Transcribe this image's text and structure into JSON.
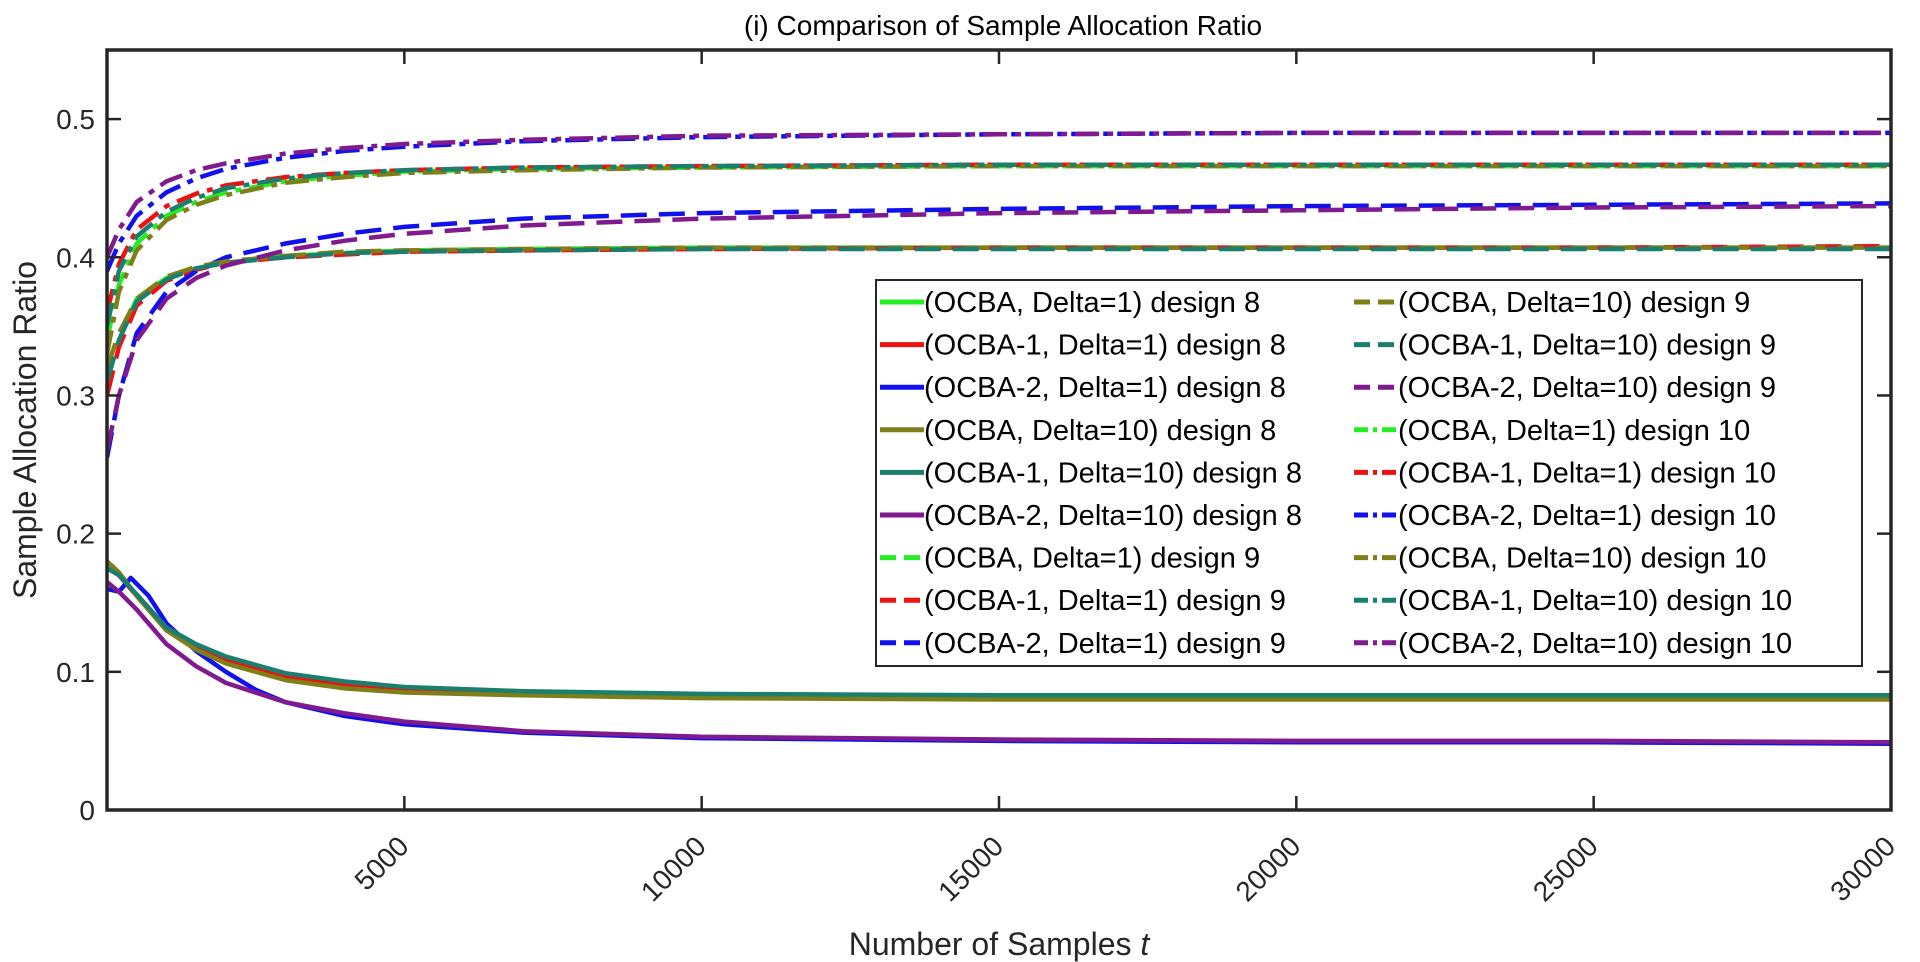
{
  "chart_data": {
    "type": "line",
    "title": "(i) Comparison of Sample Allocation Ratio",
    "xlabel": "Number of Samples",
    "xlabel_var": "t",
    "ylabel": "Sample Allocation Ratio",
    "xlim": [
      0,
      30000
    ],
    "ylim": [
      0,
      0.55
    ],
    "xticks": [
      5000,
      10000,
      15000,
      20000,
      25000,
      30000
    ],
    "xtick_labels": [
      "5000",
      "10000",
      "15000",
      "20000",
      "25000",
      "30000"
    ],
    "yticks": [
      0,
      0.1,
      0.2,
      0.3,
      0.4,
      0.5
    ],
    "ytick_labels": [
      "0",
      "0.1",
      "0.2",
      "0.3",
      "0.4",
      "0.5"
    ],
    "grid": false,
    "legend_position": "center-right",
    "series": [
      {
        "name": "(OCBA, Delta=1) design 8",
        "color": "#22ee22",
        "style": "solid",
        "x": [
          0,
          200,
          500,
          1000,
          1500,
          2000,
          3000,
          4000,
          5000,
          7000,
          10000,
          15000,
          20000,
          25000,
          30000
        ],
        "y": [
          0.175,
          0.17,
          0.155,
          0.13,
          0.117,
          0.108,
          0.096,
          0.09,
          0.087,
          0.084,
          0.082,
          0.081,
          0.081,
          0.081,
          0.081
        ]
      },
      {
        "name": "(OCBA-1, Delta=1) design 8",
        "color": "#ee1111",
        "style": "solid",
        "x": [
          0,
          200,
          500,
          1000,
          1500,
          2000,
          3000,
          4000,
          5000,
          7000,
          10000,
          15000,
          20000,
          25000,
          30000
        ],
        "y": [
          0.175,
          0.17,
          0.155,
          0.13,
          0.118,
          0.109,
          0.097,
          0.091,
          0.088,
          0.085,
          0.083,
          0.082,
          0.082,
          0.082,
          0.082
        ]
      },
      {
        "name": "(OCBA-2, Delta=1) design 8",
        "color": "#1111ee",
        "style": "solid",
        "x": [
          0,
          200,
          400,
          700,
          1000,
          1500,
          2000,
          2500,
          3000,
          4000,
          5000,
          7000,
          10000,
          15000,
          20000,
          25000,
          30000
        ],
        "y": [
          0.16,
          0.158,
          0.168,
          0.155,
          0.135,
          0.115,
          0.1,
          0.087,
          0.078,
          0.068,
          0.062,
          0.056,
          0.052,
          0.05,
          0.049,
          0.049,
          0.048
        ]
      },
      {
        "name": "(OCBA, Delta=10) design 8",
        "color": "#7f7f1a",
        "style": "solid",
        "x": [
          0,
          200,
          500,
          1000,
          1500,
          2000,
          3000,
          4000,
          5000,
          7000,
          10000,
          15000,
          20000,
          25000,
          30000
        ],
        "y": [
          0.18,
          0.172,
          0.155,
          0.13,
          0.116,
          0.106,
          0.094,
          0.088,
          0.085,
          0.083,
          0.081,
          0.08,
          0.08,
          0.08,
          0.08
        ]
      },
      {
        "name": "(OCBA-1, Delta=10) design 8",
        "color": "#1b7f6f",
        "style": "solid",
        "x": [
          0,
          200,
          500,
          1000,
          1500,
          2000,
          3000,
          4000,
          5000,
          7000,
          10000,
          15000,
          20000,
          25000,
          30000
        ],
        "y": [
          0.175,
          0.17,
          0.156,
          0.132,
          0.12,
          0.111,
          0.099,
          0.093,
          0.089,
          0.086,
          0.084,
          0.083,
          0.083,
          0.083,
          0.083
        ]
      },
      {
        "name": "(OCBA-2, Delta=10) design 8",
        "color": "#7f1a8f",
        "style": "solid",
        "x": [
          0,
          200,
          500,
          1000,
          1500,
          2000,
          3000,
          4000,
          5000,
          7000,
          10000,
          15000,
          20000,
          25000,
          30000
        ],
        "y": [
          0.165,
          0.158,
          0.145,
          0.12,
          0.104,
          0.092,
          0.078,
          0.07,
          0.064,
          0.057,
          0.053,
          0.051,
          0.05,
          0.05,
          0.049
        ]
      },
      {
        "name": "(OCBA, Delta=1) design 9",
        "color": "#22ee22",
        "style": "dashed",
        "x": [
          0,
          200,
          500,
          1000,
          1500,
          2000,
          3000,
          4000,
          5000,
          7000,
          10000,
          15000,
          20000,
          25000,
          30000
        ],
        "y": [
          0.31,
          0.34,
          0.37,
          0.385,
          0.392,
          0.396,
          0.401,
          0.403,
          0.405,
          0.406,
          0.407,
          0.407,
          0.407,
          0.407,
          0.407
        ]
      },
      {
        "name": "(OCBA-1, Delta=1) design 9",
        "color": "#ee1111",
        "style": "dashed",
        "x": [
          0,
          200,
          500,
          1000,
          1500,
          2000,
          3000,
          4000,
          5000,
          7000,
          10000,
          15000,
          20000,
          25000,
          30000
        ],
        "y": [
          0.3,
          0.335,
          0.365,
          0.383,
          0.391,
          0.396,
          0.4,
          0.402,
          0.404,
          0.405,
          0.406,
          0.407,
          0.407,
          0.407,
          0.408
        ]
      },
      {
        "name": "(OCBA-2, Delta=1) design 9",
        "color": "#1111ee",
        "style": "dashed",
        "x": [
          0,
          200,
          500,
          1000,
          1500,
          2000,
          3000,
          4000,
          5000,
          7000,
          10000,
          15000,
          20000,
          25000,
          30000
        ],
        "y": [
          0.255,
          0.3,
          0.345,
          0.375,
          0.39,
          0.4,
          0.41,
          0.417,
          0.422,
          0.428,
          0.432,
          0.435,
          0.437,
          0.438,
          0.439
        ]
      },
      {
        "name": "(OCBA, Delta=10) design 9",
        "color": "#7f7f1a",
        "style": "dashed",
        "x": [
          0,
          200,
          500,
          1000,
          1500,
          2000,
          3000,
          4000,
          5000,
          7000,
          10000,
          15000,
          20000,
          25000,
          30000
        ],
        "y": [
          0.32,
          0.345,
          0.37,
          0.386,
          0.393,
          0.397,
          0.401,
          0.404,
          0.405,
          0.406,
          0.407,
          0.407,
          0.407,
          0.407,
          0.407
        ]
      },
      {
        "name": "(OCBA-1, Delta=10) design 9",
        "color": "#1b7f6f",
        "style": "dashed",
        "x": [
          0,
          200,
          500,
          1000,
          1500,
          2000,
          3000,
          4000,
          5000,
          7000,
          10000,
          15000,
          20000,
          25000,
          30000
        ],
        "y": [
          0.31,
          0.34,
          0.368,
          0.384,
          0.392,
          0.396,
          0.4,
          0.403,
          0.404,
          0.405,
          0.406,
          0.406,
          0.406,
          0.406,
          0.406
        ]
      },
      {
        "name": "(OCBA-2, Delta=10) design 9",
        "color": "#7f1a8f",
        "style": "dashed",
        "x": [
          0,
          200,
          500,
          1000,
          1500,
          2000,
          3000,
          4000,
          5000,
          7000,
          10000,
          15000,
          20000,
          25000,
          30000
        ],
        "y": [
          0.26,
          0.3,
          0.34,
          0.37,
          0.385,
          0.394,
          0.405,
          0.412,
          0.417,
          0.423,
          0.428,
          0.432,
          0.434,
          0.436,
          0.437
        ]
      },
      {
        "name": "(OCBA, Delta=1) design 10",
        "color": "#22ee22",
        "style": "dashdot",
        "x": [
          0,
          200,
          500,
          1000,
          1500,
          2000,
          3000,
          4000,
          5000,
          7000,
          10000,
          15000,
          20000,
          25000,
          30000
        ],
        "y": [
          0.34,
          0.38,
          0.41,
          0.43,
          0.44,
          0.447,
          0.455,
          0.459,
          0.462,
          0.464,
          0.465,
          0.466,
          0.466,
          0.466,
          0.466
        ]
      },
      {
        "name": "(OCBA-1, Delta=1) design 10",
        "color": "#ee1111",
        "style": "dashdot",
        "x": [
          0,
          200,
          500,
          1000,
          1500,
          2000,
          3000,
          4000,
          5000,
          7000,
          10000,
          15000,
          20000,
          25000,
          30000
        ],
        "y": [
          0.36,
          0.395,
          0.42,
          0.437,
          0.446,
          0.452,
          0.458,
          0.461,
          0.463,
          0.465,
          0.466,
          0.467,
          0.467,
          0.467,
          0.467
        ]
      },
      {
        "name": "(OCBA-2, Delta=1) design 10",
        "color": "#1111ee",
        "style": "dashdot",
        "x": [
          0,
          200,
          500,
          1000,
          1500,
          2000,
          3000,
          4000,
          5000,
          7000,
          10000,
          15000,
          20000,
          25000,
          30000
        ],
        "y": [
          0.39,
          0.41,
          0.43,
          0.447,
          0.457,
          0.464,
          0.472,
          0.477,
          0.48,
          0.484,
          0.487,
          0.489,
          0.49,
          0.49,
          0.49
        ]
      },
      {
        "name": "(OCBA, Delta=10) design 10",
        "color": "#7f7f1a",
        "style": "dashdot",
        "x": [
          0,
          200,
          500,
          1000,
          1500,
          2000,
          3000,
          4000,
          5000,
          7000,
          10000,
          15000,
          20000,
          25000,
          30000
        ],
        "y": [
          0.33,
          0.375,
          0.405,
          0.427,
          0.438,
          0.445,
          0.454,
          0.458,
          0.461,
          0.463,
          0.465,
          0.466,
          0.466,
          0.466,
          0.466
        ]
      },
      {
        "name": "(OCBA-1, Delta=10) design 10",
        "color": "#1b7f6f",
        "style": "dashdot",
        "x": [
          0,
          200,
          500,
          1000,
          1500,
          2000,
          3000,
          4000,
          5000,
          7000,
          10000,
          15000,
          20000,
          25000,
          30000
        ],
        "y": [
          0.35,
          0.39,
          0.415,
          0.433,
          0.443,
          0.45,
          0.457,
          0.461,
          0.463,
          0.465,
          0.466,
          0.467,
          0.467,
          0.467,
          0.467
        ]
      },
      {
        "name": "(OCBA-2, Delta=10) design 10",
        "color": "#7f1a8f",
        "style": "dashdot",
        "x": [
          0,
          200,
          500,
          1000,
          1500,
          2000,
          3000,
          4000,
          5000,
          7000,
          10000,
          15000,
          20000,
          25000,
          30000
        ],
        "y": [
          0.4,
          0.42,
          0.44,
          0.455,
          0.463,
          0.468,
          0.475,
          0.479,
          0.482,
          0.485,
          0.488,
          0.489,
          0.49,
          0.49,
          0.49
        ]
      }
    ]
  }
}
